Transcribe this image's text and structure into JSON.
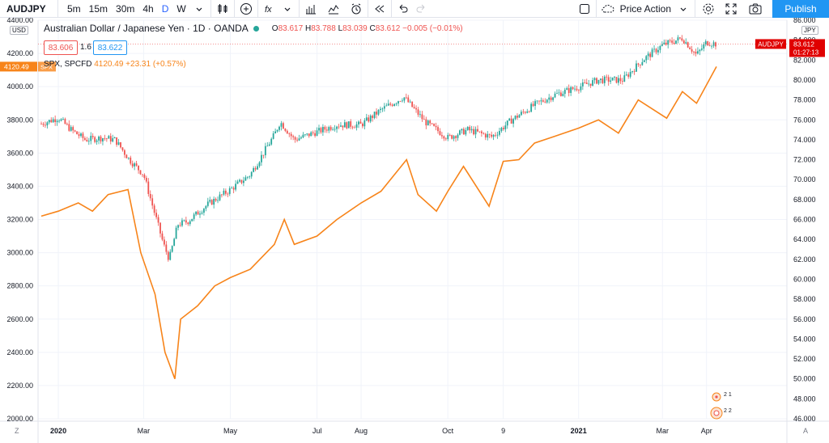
{
  "toolbar": {
    "symbol": "AUDJPY",
    "intervals": [
      "5m",
      "15m",
      "30m",
      "4h",
      "D",
      "W"
    ],
    "active_interval": "D",
    "price_action_label": "Price Action",
    "publish_label": "Publish",
    "icons": [
      "chevron-down-icon",
      "candles-icon",
      "plus-circle-icon",
      "fx-icon",
      "bar-chart-icon",
      "indicators-icon",
      "alarm-icon",
      "rewind-icon",
      "undo-icon",
      "redo-icon",
      "square-icon",
      "cloud-icon",
      "gear-icon",
      "fullscreen-icon",
      "camera-icon"
    ]
  },
  "legend": {
    "title": "Australian Dollar / Japanese Yen · 1D · OANDA",
    "open_label": "O",
    "open": "83.617",
    "high_label": "H",
    "high": "83.788",
    "low_label": "L",
    "low": "83.039",
    "close_label": "C",
    "close": "83.612",
    "change": "−0.005 (−0.01%)",
    "bid": "83.606",
    "spread": "1.6",
    "ask": "83.622",
    "overlay_name": "SPX, SPCFD",
    "overlay_value": "4120.49 +23.31 (+0.57%)"
  },
  "scales": {
    "left_unit": "USD",
    "right_unit": "JPY",
    "left_ticks": [
      "4400.00",
      "4200.00",
      "4000.00",
      "3800.00",
      "3600.00",
      "3400.00",
      "3200.00",
      "3000.00",
      "2800.00",
      "2600.00",
      "2400.00",
      "2200.00",
      "2000.00"
    ],
    "right_ticks": [
      "86.000",
      "84.000",
      "82.000",
      "80.000",
      "78.000",
      "76.000",
      "74.000",
      "72.000",
      "70.000",
      "68.000",
      "66.000",
      "64.000",
      "62.000",
      "60.000",
      "58.000",
      "56.000",
      "54.000",
      "52.000",
      "50.000",
      "48.000",
      "46.000"
    ],
    "x_ticks": [
      "2020",
      "Mar",
      "May",
      "Jul",
      "Aug",
      "Oct",
      "9",
      "2021",
      "Mar",
      "Apr"
    ],
    "left_marker": "4120.49",
    "left_marker_tag": "SPX",
    "right_marker_symbol": "AUDJPY",
    "right_marker_price": "83.612",
    "right_marker_countdown": "01:27:13",
    "z_label": "Z",
    "a_label": "A",
    "badge_top": "2 1",
    "badge_bottom": "2 2"
  },
  "colors": {
    "up": "#26a69a",
    "down": "#ef5350",
    "spx": "#f7841a",
    "accent": "#2962ff",
    "publish": "#2196f3"
  },
  "chart_data": {
    "type": "line",
    "title": "Australian Dollar / Japanese Yen · 1D · OANDA",
    "x_range": [
      "2019-12-20",
      "2021-04-08"
    ],
    "series": [
      {
        "name": "AUDJPY",
        "axis": "right",
        "style": "candlestick",
        "x": [
          "2019-12-20",
          "2020-01-01",
          "2020-01-10",
          "2020-01-20",
          "2020-02-01",
          "2020-02-10",
          "2020-02-20",
          "2020-03-01",
          "2020-03-10",
          "2020-03-15",
          "2020-03-19",
          "2020-03-25",
          "2020-04-01",
          "2020-04-15",
          "2020-05-01",
          "2020-05-15",
          "2020-06-01",
          "2020-06-05",
          "2020-06-15",
          "2020-07-01",
          "2020-07-15",
          "2020-08-01",
          "2020-08-15",
          "2020-08-31",
          "2020-09-15",
          "2020-10-01",
          "2020-10-15",
          "2020-11-01",
          "2020-11-15",
          "2020-12-01",
          "2020-12-15",
          "2021-01-01",
          "2021-01-15",
          "2021-02-01",
          "2021-02-15",
          "2021-03-01",
          "2021-03-15",
          "2021-03-25",
          "2021-04-01",
          "2021-04-08"
        ],
        "values": [
          75.6,
          76.2,
          75.0,
          74.0,
          74.2,
          74.0,
          72.0,
          70.5,
          66.0,
          63.5,
          62.0,
          65.5,
          65.8,
          67.5,
          69.0,
          70.5,
          74.5,
          75.8,
          74.0,
          74.8,
          75.5,
          75.5,
          77.0,
          78.3,
          75.8,
          74.2,
          75.0,
          74.3,
          76.0,
          77.5,
          78.5,
          79.3,
          80.0,
          80.0,
          82.0,
          83.5,
          84.2,
          82.5,
          83.8,
          83.612
        ]
      },
      {
        "name": "SPX, SPCFD",
        "axis": "left",
        "x": [
          "2019-12-20",
          "2020-01-01",
          "2020-01-15",
          "2020-01-25",
          "2020-02-05",
          "2020-02-19",
          "2020-02-28",
          "2020-03-09",
          "2020-03-16",
          "2020-03-23",
          "2020-03-27",
          "2020-04-08",
          "2020-04-20",
          "2020-05-01",
          "2020-05-15",
          "2020-06-01",
          "2020-06-08",
          "2020-06-15",
          "2020-07-01",
          "2020-07-15",
          "2020-08-01",
          "2020-08-15",
          "2020-09-02",
          "2020-09-10",
          "2020-09-23",
          "2020-10-01",
          "2020-10-12",
          "2020-10-30",
          "2020-11-09",
          "2020-11-20",
          "2020-12-01",
          "2020-12-15",
          "2021-01-01",
          "2021-01-15",
          "2021-01-29",
          "2021-02-12",
          "2021-03-04",
          "2021-03-15",
          "2021-03-25",
          "2021-04-08"
        ],
        "values": [
          3220,
          3250,
          3300,
          3250,
          3350,
          3380,
          3000,
          2750,
          2400,
          2240,
          2600,
          2680,
          2800,
          2850,
          2900,
          3050,
          3200,
          3050,
          3100,
          3200,
          3300,
          3370,
          3560,
          3350,
          3250,
          3370,
          3520,
          3280,
          3550,
          3560,
          3660,
          3700,
          3750,
          3800,
          3720,
          3920,
          3810,
          3970,
          3900,
          4120.49
        ]
      }
    ],
    "left_ylim": [
      2000,
      4400
    ],
    "right_ylim": [
      46,
      86
    ],
    "grid": true,
    "legend_position": "top-left"
  }
}
